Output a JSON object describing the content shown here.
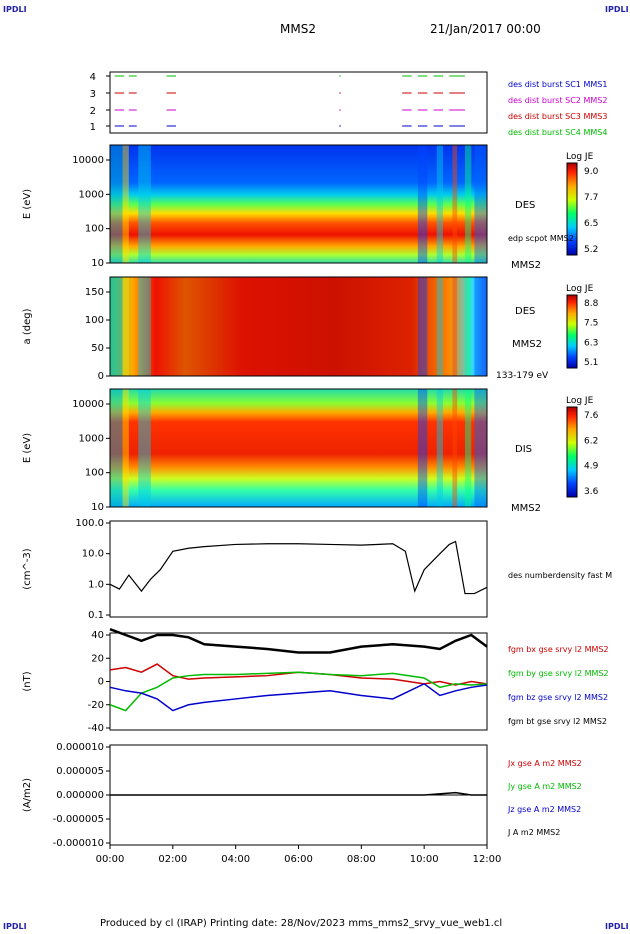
{
  "corner_label": "IPDLI",
  "header": {
    "spacecraft": "MMS2",
    "datetime": "21/Jan/2017 00:00"
  },
  "footer": {
    "text": "Produced by cl (IRAP)   Printing date: 28/Nov/2023   mms_mms2_srvy_vue_web1.cl"
  },
  "colors": {
    "blue": "#0000cc",
    "magenta": "#cc00cc",
    "red": "#cc0000",
    "green": "#00bb00",
    "black": "#000000"
  },
  "chart_data": [
    {
      "type": "line",
      "panel": "burst",
      "yticks": [
        "4",
        "3",
        "2",
        "1"
      ],
      "legend": [
        {
          "text": "des dist burst SC1 MMS1",
          "color": "#0000cc"
        },
        {
          "text": "des dist burst SC2 MMS2",
          "color": "#cc00cc"
        },
        {
          "text": "des dist burst SC3 MMS3",
          "color": "#cc0000"
        },
        {
          "text": "des dist burst SC4 MMS4",
          "color": "#00bb00"
        }
      ]
    },
    {
      "type": "heatmap",
      "panel": "des-energy",
      "ylabel": "E (eV)",
      "yticks": [
        "10000",
        "1000",
        "100",
        "10"
      ],
      "labels": [
        "DES",
        "edp scpot MMS2",
        "MMS2"
      ],
      "colorbar": {
        "title": "Log JE",
        "ticks": [
          "9.0",
          "7.7",
          "6.5",
          "5.2"
        ]
      }
    },
    {
      "type": "heatmap",
      "panel": "des-pitch",
      "ylabel": "a (deg)",
      "yticks": [
        "150",
        "100",
        "50",
        "0"
      ],
      "labels": [
        "DES",
        "MMS2",
        "133-179 eV"
      ],
      "colorbar": {
        "title": "Log JE",
        "ticks": [
          "8.8",
          "7.5",
          "6.3",
          "5.1"
        ]
      }
    },
    {
      "type": "heatmap",
      "panel": "dis-energy",
      "ylabel": "E (eV)",
      "yticks": [
        "10000",
        "1000",
        "100",
        "10"
      ],
      "labels": [
        "DIS",
        "MMS2"
      ],
      "colorbar": {
        "title": "Log JE",
        "ticks": [
          "7.6",
          "6.2",
          "4.9",
          "3.6"
        ]
      }
    },
    {
      "type": "line",
      "panel": "density",
      "ylabel": "(cm^-3)",
      "yticks": [
        "100.0",
        "10.0",
        "1.0",
        "0.1"
      ],
      "legend": [
        {
          "text": "des numberdensity fast M",
          "color": "#000000"
        }
      ],
      "x": [
        0,
        0.3,
        0.6,
        1.0,
        1.3,
        1.6,
        2.0,
        2.5,
        3.0,
        4.0,
        5.0,
        6.0,
        7.0,
        8.0,
        9.0,
        9.4,
        9.7,
        10.0,
        10.5,
        10.8,
        11.0,
        11.3,
        11.6,
        12.0
      ],
      "y": [
        1.0,
        0.7,
        2.0,
        0.6,
        1.5,
        3.0,
        12.0,
        15.0,
        17.0,
        20.0,
        21.0,
        21.0,
        20.0,
        19.0,
        21.0,
        12.0,
        0.6,
        3.0,
        10.0,
        20.0,
        25.0,
        0.5,
        0.5,
        0.8
      ]
    },
    {
      "type": "line",
      "panel": "magnetic",
      "ylabel": "(nT)",
      "yticks": [
        "40",
        "20",
        "0",
        "-20",
        "-40"
      ],
      "legend": [
        {
          "text": "fgm bx gse srvy l2 MMS2",
          "color": "#cc0000"
        },
        {
          "text": "fgm by gse srvy l2 MMS2",
          "color": "#00bb00"
        },
        {
          "text": "fgm bz gse srvy l2 MMS2",
          "color": "#0000cc"
        },
        {
          "text": "fgm bt gse srvy l2 MMS2",
          "color": "#000000"
        }
      ],
      "series": [
        {
          "x": [
            0,
            0.5,
            1,
            1.5,
            2,
            2.5,
            3,
            4,
            5,
            6,
            7,
            8,
            9,
            10,
            10.5,
            11,
            11.5,
            12
          ],
          "y": [
            10,
            12,
            8,
            15,
            5,
            2,
            3,
            4,
            5,
            8,
            6,
            3,
            2,
            -2,
            0,
            -3,
            0,
            -2
          ]
        },
        {
          "x": [
            0,
            0.5,
            1,
            1.5,
            2,
            2.5,
            3,
            4,
            5,
            6,
            7,
            8,
            9,
            10,
            10.5,
            11,
            11.5,
            12
          ],
          "y": [
            -20,
            -25,
            -10,
            -5,
            3,
            5,
            6,
            6,
            7,
            8,
            6,
            5,
            7,
            3,
            -5,
            -2,
            -3,
            -2
          ]
        },
        {
          "x": [
            0,
            0.5,
            1,
            1.5,
            2,
            2.5,
            3,
            4,
            5,
            6,
            7,
            8,
            9,
            10,
            10.5,
            11,
            11.5,
            12
          ],
          "y": [
            -5,
            -8,
            -10,
            -15,
            -25,
            -20,
            -18,
            -15,
            -12,
            -10,
            -8,
            -12,
            -15,
            -2,
            -12,
            -8,
            -5,
            -3
          ]
        },
        {
          "x": [
            0,
            0.5,
            1,
            1.5,
            2,
            2.5,
            3,
            4,
            5,
            6,
            7,
            8,
            9,
            10,
            10.5,
            11,
            11.5,
            12
          ],
          "y": [
            45,
            40,
            35,
            40,
            40,
            38,
            32,
            30,
            28,
            25,
            25,
            30,
            32,
            30,
            28,
            35,
            40,
            30
          ]
        }
      ]
    },
    {
      "type": "line",
      "panel": "current",
      "ylabel": "(A/m2)",
      "yticks": [
        "0.000010",
        "0.000005",
        "0.000000",
        "-0.000005",
        "-0.000010"
      ],
      "legend": [
        {
          "text": "Jx gse A m2 MMS2",
          "color": "#cc0000"
        },
        {
          "text": "Jy gse A m2 MMS2",
          "color": "#00bb00"
        },
        {
          "text": "Jz gse A m2 MMS2",
          "color": "#0000cc"
        },
        {
          "text": "J A m2 MMS2",
          "color": "#000000"
        }
      ],
      "x": [
        0,
        1,
        2,
        3,
        4,
        5,
        6,
        7,
        8,
        9,
        10,
        11,
        11.5,
        12
      ],
      "y": [
        0,
        0,
        0,
        0,
        0,
        0,
        0,
        0,
        0,
        0,
        0,
        5e-07,
        0,
        0
      ]
    }
  ],
  "x_ticks": [
    "00:00",
    "02:00",
    "04:00",
    "06:00",
    "08:00",
    "10:00",
    "12:00"
  ]
}
